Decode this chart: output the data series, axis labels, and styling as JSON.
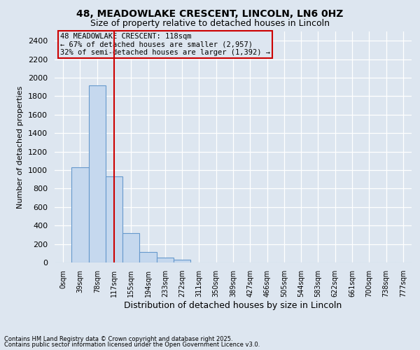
{
  "title1": "48, MEADOWLAKE CRESCENT, LINCOLN, LN6 0HZ",
  "title2": "Size of property relative to detached houses in Lincoln",
  "xlabel": "Distribution of detached houses by size in Lincoln",
  "ylabel": "Number of detached properties",
  "bin_labels": [
    "0sqm",
    "39sqm",
    "78sqm",
    "117sqm",
    "155sqm",
    "194sqm",
    "233sqm",
    "272sqm",
    "311sqm",
    "350sqm",
    "389sqm",
    "427sqm",
    "466sqm",
    "505sqm",
    "544sqm",
    "583sqm",
    "622sqm",
    "661sqm",
    "700sqm",
    "738sqm",
    "777sqm"
  ],
  "bar_heights": [
    0,
    1030,
    1920,
    930,
    315,
    110,
    50,
    30,
    0,
    0,
    0,
    0,
    0,
    0,
    0,
    0,
    0,
    0,
    0,
    0,
    0
  ],
  "bar_color": "#c5d8ee",
  "bar_edge_color": "#6699cc",
  "ylim": [
    0,
    2500
  ],
  "yticks": [
    0,
    200,
    400,
    600,
    800,
    1000,
    1200,
    1400,
    1600,
    1800,
    2000,
    2200,
    2400
  ],
  "vline_x": 3,
  "vline_color": "#cc0000",
  "annotation_title": "48 MEADOWLAKE CRESCENT: 118sqm",
  "annotation_line1": "← 67% of detached houses are smaller (2,957)",
  "annotation_line2": "32% of semi-detached houses are larger (1,392) →",
  "annotation_box_color": "#cc0000",
  "background_color": "#dde6f0",
  "grid_color": "#ffffff",
  "footnote1": "Contains HM Land Registry data © Crown copyright and database right 2025.",
  "footnote2": "Contains public sector information licensed under the Open Government Licence v3.0."
}
